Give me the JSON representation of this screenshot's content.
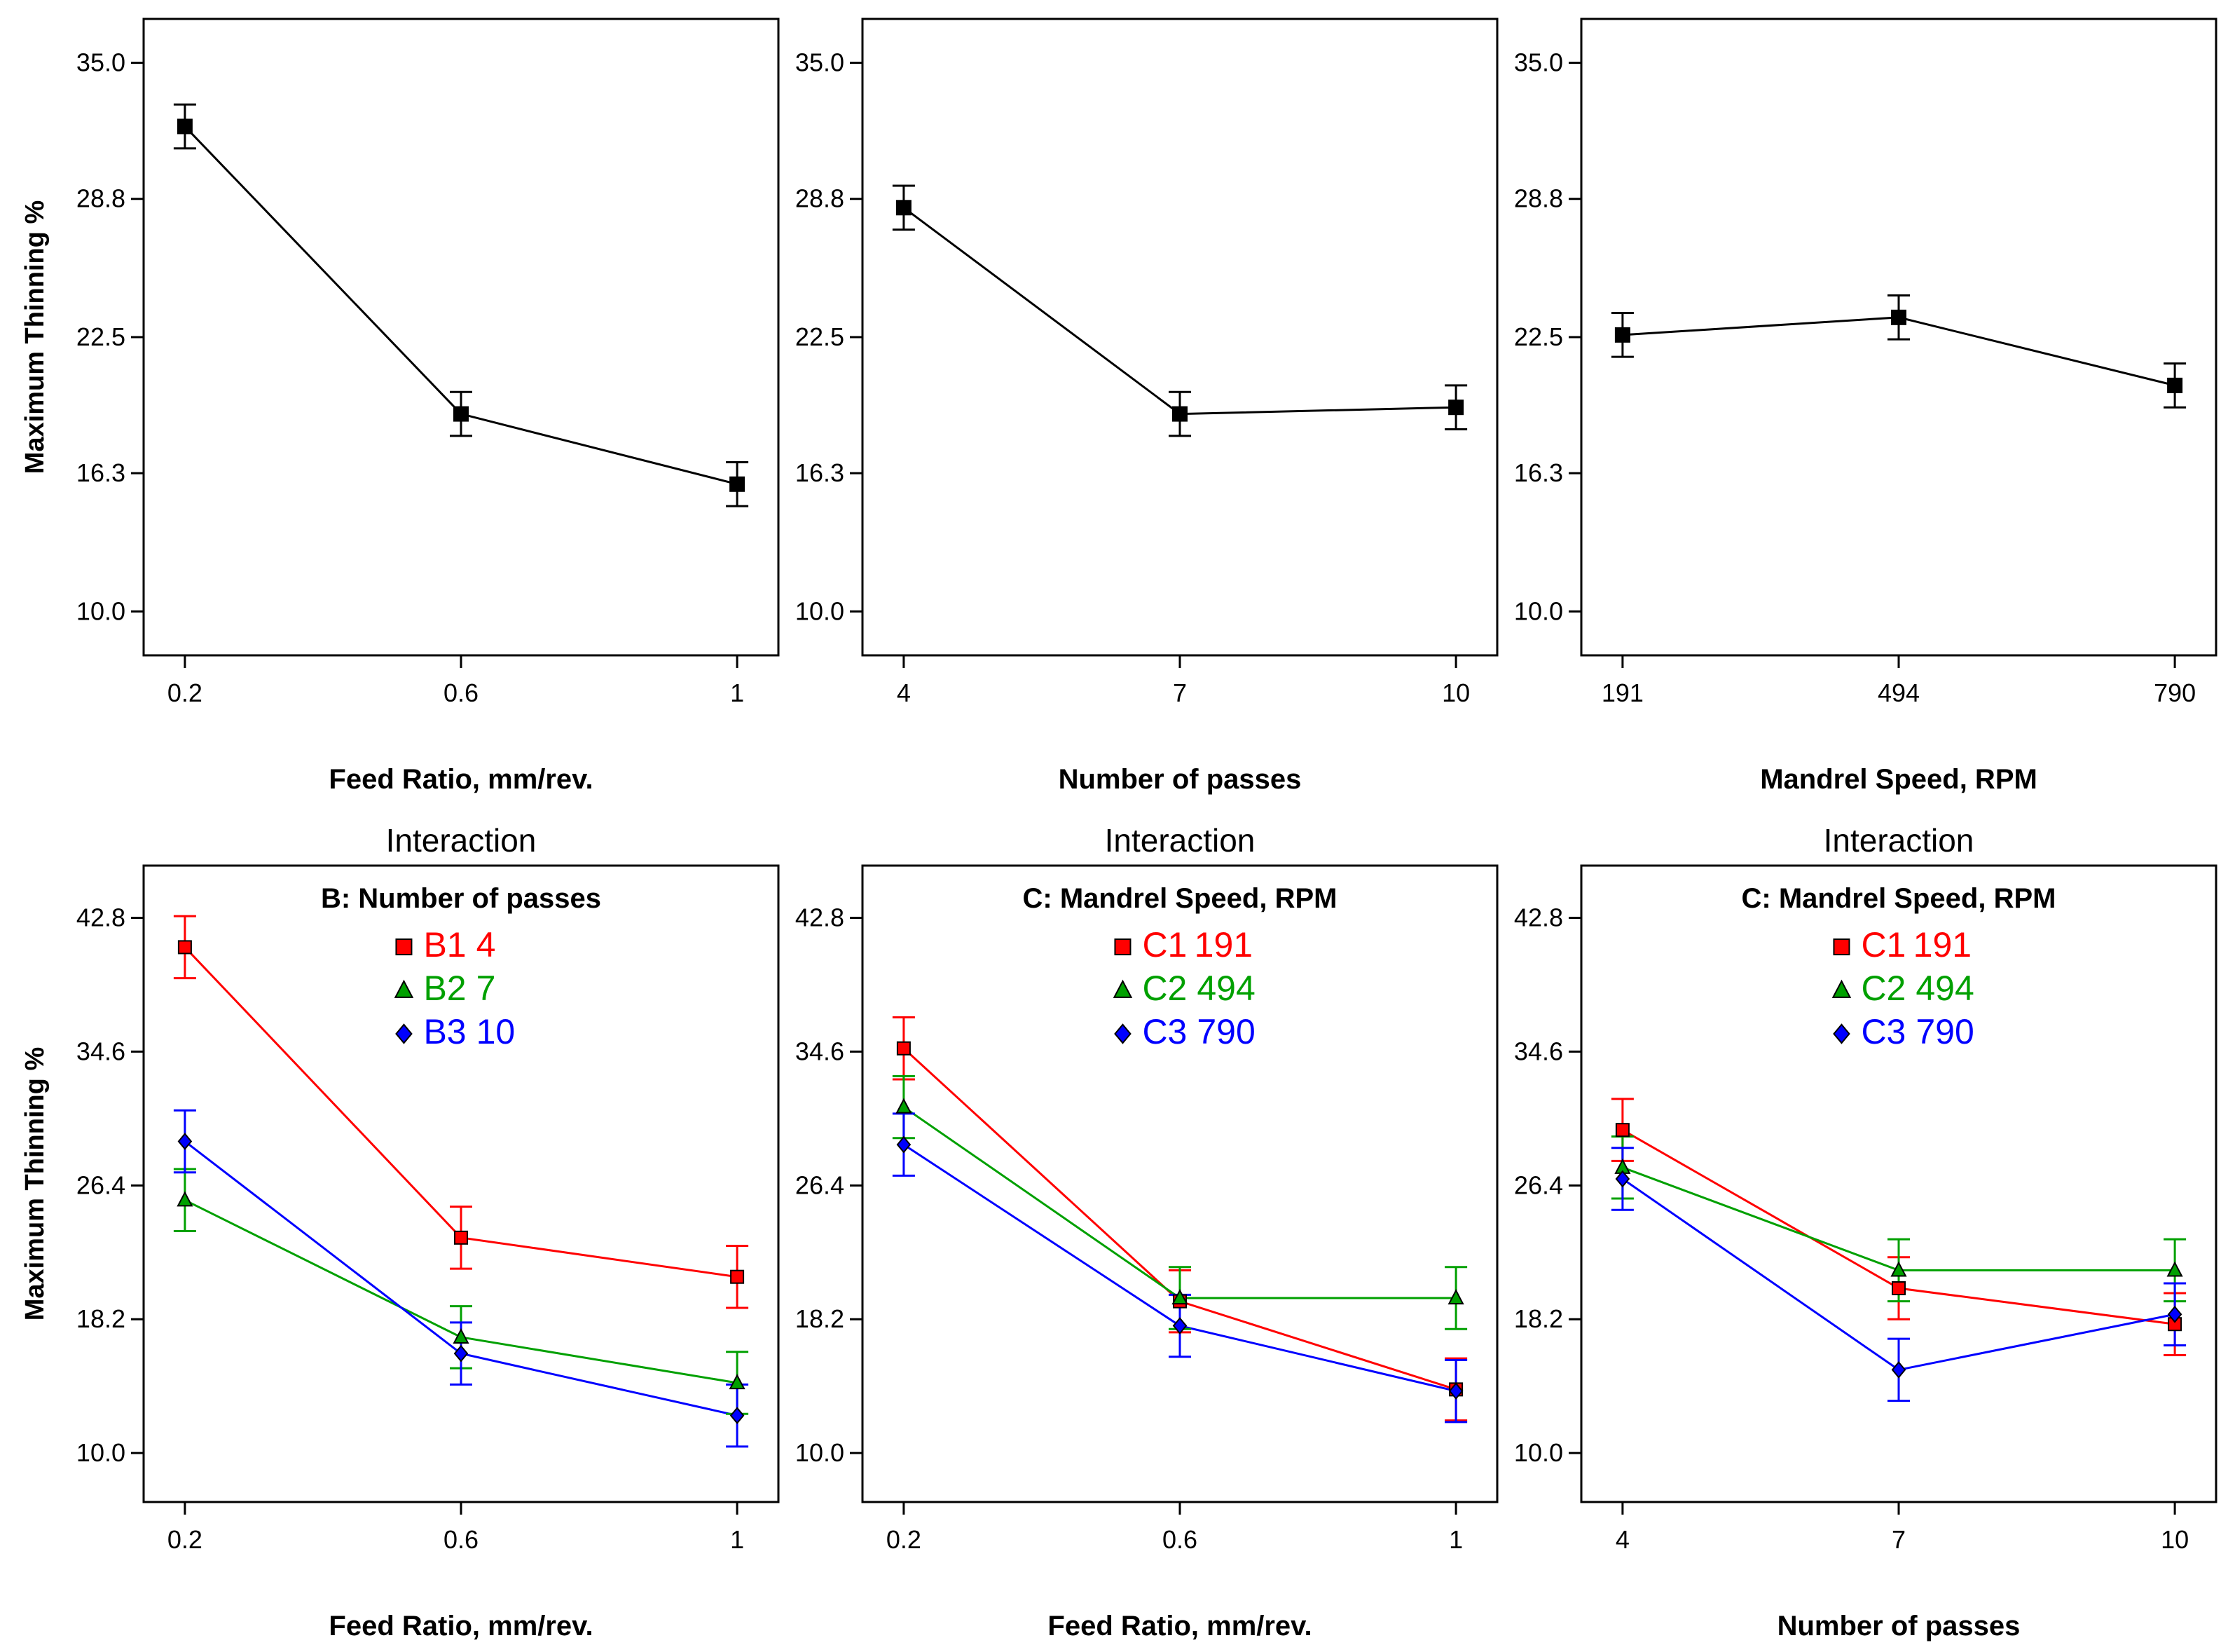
{
  "chart_data": [
    {
      "type": "line",
      "title": "",
      "factor_label": "",
      "xlabel": "Feed Ratio, mm/rev.",
      "ylabel": "Maximum Thinning %",
      "categories": [
        "0.2",
        "0.6",
        "1"
      ],
      "yticks": [
        "10.0",
        "16.3",
        "22.5",
        "28.8",
        "35.0"
      ],
      "ylim": [
        8.0,
        37.0
      ],
      "legend": [],
      "series": [
        {
          "name": "",
          "color": "#000000",
          "marker": "square",
          "values": [
            32.1,
            19.0,
            15.8
          ],
          "err": [
            1.0,
            1.0,
            1.0
          ]
        }
      ]
    },
    {
      "type": "line",
      "title": "",
      "factor_label": "",
      "xlabel": "Number of passes",
      "ylabel": "",
      "categories": [
        "4",
        "7",
        "10"
      ],
      "yticks": [
        "10.0",
        "16.3",
        "22.5",
        "28.8",
        "35.0"
      ],
      "ylim": [
        8.0,
        37.0
      ],
      "legend": [],
      "series": [
        {
          "name": "",
          "color": "#000000",
          "marker": "square",
          "values": [
            28.4,
            19.0,
            19.3
          ],
          "err": [
            1.0,
            1.0,
            1.0
          ]
        }
      ]
    },
    {
      "type": "line",
      "title": "",
      "factor_label": "",
      "xlabel": "Mandrel Speed, RPM",
      "ylabel": "",
      "categories": [
        "191",
        "494",
        "790"
      ],
      "yticks": [
        "10.0",
        "16.3",
        "22.5",
        "28.8",
        "35.0"
      ],
      "ylim": [
        8.0,
        37.0
      ],
      "legend": [],
      "series": [
        {
          "name": "",
          "color": "#000000",
          "marker": "square",
          "values": [
            22.6,
            23.4,
            20.3
          ],
          "err": [
            1.0,
            1.0,
            1.0
          ]
        }
      ]
    },
    {
      "type": "line",
      "title": "Interaction",
      "factor_label": "B: Number of passes",
      "xlabel": "Feed Ratio, mm/rev.",
      "ylabel": "Maximum Thinning %",
      "categories": [
        "0.2",
        "0.6",
        "1"
      ],
      "yticks": [
        "10.0",
        "18.2",
        "26.4",
        "34.6",
        "42.8"
      ],
      "ylim": [
        7.0,
        46.0
      ],
      "legend": [
        {
          "code": "B1",
          "level": "4",
          "color": "#ff0000",
          "marker": "square"
        },
        {
          "code": "B2",
          "level": "7",
          "color": "#00a000",
          "marker": "triangle"
        },
        {
          "code": "B3",
          "level": "10",
          "color": "#0000ff",
          "marker": "diamond"
        }
      ],
      "series": [
        {
          "name": "B1 4",
          "color": "#ff0000",
          "marker": "square",
          "values": [
            41.0,
            23.2,
            20.8
          ],
          "err": [
            1.9,
            1.9,
            1.9
          ]
        },
        {
          "name": "B2 7",
          "color": "#00a000",
          "marker": "triangle",
          "values": [
            25.5,
            17.1,
            14.3
          ],
          "err": [
            1.9,
            1.9,
            1.9
          ]
        },
        {
          "name": "B3 10",
          "color": "#0000ff",
          "marker": "diamond",
          "values": [
            29.1,
            16.1,
            12.3
          ],
          "err": [
            1.9,
            1.9,
            1.9
          ]
        }
      ]
    },
    {
      "type": "line",
      "title": "Interaction",
      "factor_label": "C: Mandrel Speed, RPM",
      "xlabel": "Feed Ratio, mm/rev.",
      "ylabel": "",
      "categories": [
        "0.2",
        "0.6",
        "1"
      ],
      "yticks": [
        "10.0",
        "18.2",
        "26.4",
        "34.6",
        "42.8"
      ],
      "ylim": [
        7.0,
        46.0
      ],
      "legend": [
        {
          "code": "C1",
          "level": "191",
          "color": "#ff0000",
          "marker": "square"
        },
        {
          "code": "C2",
          "level": "494",
          "color": "#00a000",
          "marker": "triangle"
        },
        {
          "code": "C3",
          "level": "790",
          "color": "#0000ff",
          "marker": "diamond"
        }
      ],
      "series": [
        {
          "name": "C1 191",
          "color": "#ff0000",
          "marker": "square",
          "values": [
            34.8,
            19.3,
            13.9
          ],
          "err": [
            1.9,
            1.9,
            1.9
          ]
        },
        {
          "name": "C2 494",
          "color": "#00a000",
          "marker": "triangle",
          "values": [
            31.2,
            19.5,
            19.5
          ],
          "err": [
            1.9,
            1.9,
            1.9
          ]
        },
        {
          "name": "C3 790",
          "color": "#0000ff",
          "marker": "diamond",
          "values": [
            28.9,
            17.8,
            13.8
          ],
          "err": [
            1.9,
            1.9,
            1.9
          ]
        }
      ]
    },
    {
      "type": "line",
      "title": "Interaction",
      "factor_label": "C: Mandrel Speed, RPM",
      "xlabel": "Number of passes",
      "ylabel": "",
      "categories": [
        "4",
        "7",
        "10"
      ],
      "yticks": [
        "10.0",
        "18.2",
        "26.4",
        "34.6",
        "42.8"
      ],
      "ylim": [
        7.0,
        46.0
      ],
      "legend": [
        {
          "code": "C1",
          "level": "191",
          "color": "#ff0000",
          "marker": "square"
        },
        {
          "code": "C2",
          "level": "494",
          "color": "#00a000",
          "marker": "triangle"
        },
        {
          "code": "C3",
          "level": "790",
          "color": "#0000ff",
          "marker": "diamond"
        }
      ],
      "series": [
        {
          "name": "C1 191",
          "color": "#ff0000",
          "marker": "square",
          "values": [
            29.8,
            20.1,
            17.9
          ],
          "err": [
            1.9,
            1.9,
            1.9
          ]
        },
        {
          "name": "C2 494",
          "color": "#00a000",
          "marker": "triangle",
          "values": [
            27.5,
            21.2,
            21.2
          ],
          "err": [
            1.9,
            1.9,
            1.9
          ]
        },
        {
          "name": "C3 790",
          "color": "#0000ff",
          "marker": "diamond",
          "values": [
            26.8,
            15.1,
            18.5
          ],
          "err": [
            1.9,
            1.9,
            1.9
          ]
        }
      ]
    }
  ]
}
